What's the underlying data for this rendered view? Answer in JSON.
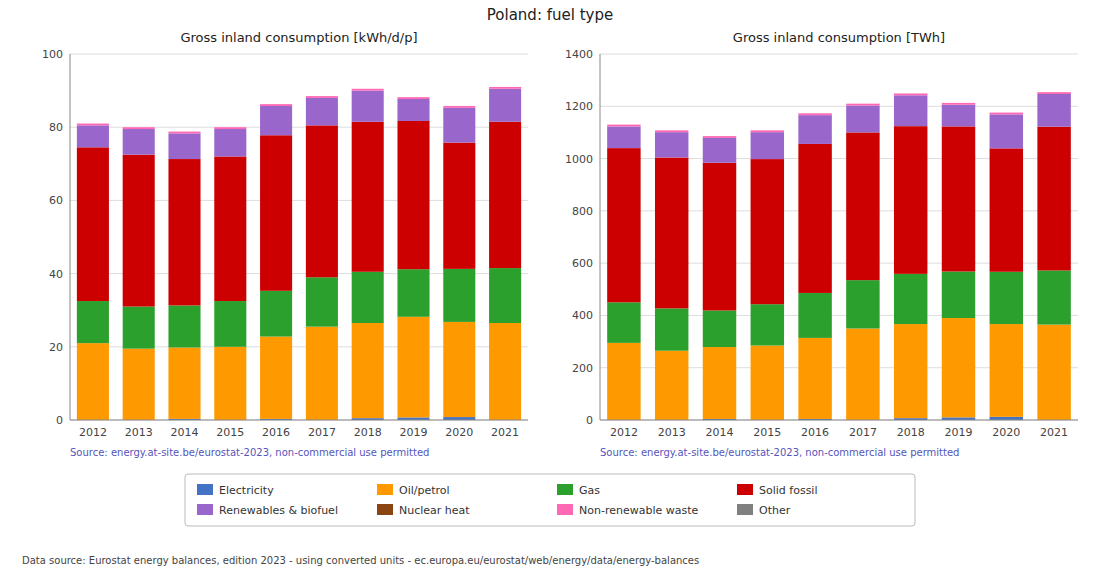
{
  "title": "Poland: fuel type",
  "annotations": [
    "Data source: Eurostat energy balances, edition 2023 - using converted units - ec.europa.eu/eurostat/web/energy/data/energy-balances"
  ],
  "chart_data": [
    {
      "type": "bar",
      "stacked": true,
      "grid": true,
      "legend": "bottom",
      "title": "Gross inland consumption [kWh/d/p]",
      "annotations": [
        "Source: energy.at-site.be/eurostat-2023, non-commercial use permitted"
      ],
      "categories": [
        "2012",
        "2013",
        "2014",
        "2015",
        "2016",
        "2017",
        "2018",
        "2019",
        "2020",
        "2021"
      ],
      "ylim": [
        0,
        100
      ],
      "yticks": [
        0,
        20,
        40,
        60,
        80,
        100
      ],
      "series": [
        {
          "name": "Electricity",
          "color": "#4472c4",
          "values": [
            0.0,
            0.0,
            0.3,
            0.0,
            0.3,
            0.0,
            0.5,
            0.7,
            0.8,
            0.0
          ]
        },
        {
          "name": "Oil/petrol",
          "color": "#ff9900",
          "values": [
            21.0,
            19.5,
            19.5,
            20.0,
            22.5,
            25.5,
            26.0,
            27.5,
            26.0,
            26.5
          ]
        },
        {
          "name": "Gas",
          "color": "#2ca02c",
          "values": [
            11.5,
            11.5,
            11.5,
            12.5,
            12.5,
            13.5,
            14.0,
            13.0,
            14.5,
            15.0
          ]
        },
        {
          "name": "Solid fossil",
          "color": "#cc0000",
          "values": [
            42.0,
            41.5,
            40.0,
            39.5,
            42.5,
            41.5,
            41.0,
            40.5,
            34.5,
            40.0
          ]
        },
        {
          "name": "Renewables & biofuel",
          "color": "#9966cc",
          "values": [
            6.0,
            7.0,
            7.0,
            7.5,
            8.0,
            7.5,
            8.5,
            6.0,
            9.5,
            9.0
          ]
        },
        {
          "name": "Nuclear heat",
          "color": "#8b4513",
          "values": [
            0.0,
            0.0,
            0.0,
            0.0,
            0.0,
            0.0,
            0.0,
            0.0,
            0.0,
            0.0
          ]
        },
        {
          "name": "Non-renewable waste",
          "color": "#ff69b4",
          "values": [
            0.5,
            0.5,
            0.5,
            0.5,
            0.5,
            0.5,
            0.5,
            0.5,
            0.5,
            0.5
          ]
        },
        {
          "name": "Other",
          "color": "#808080",
          "values": [
            0.0,
            0.0,
            0.0,
            0.0,
            0.0,
            0.0,
            0.0,
            0.0,
            0.0,
            0.0
          ]
        }
      ]
    },
    {
      "type": "bar",
      "stacked": true,
      "grid": true,
      "legend": "bottom",
      "title": "Gross inland consumption [TWh]",
      "annotations": [
        "Source: energy.at-site.be/eurostat-2023, non-commercial use permitted"
      ],
      "categories": [
        "2012",
        "2013",
        "2014",
        "2015",
        "2016",
        "2017",
        "2018",
        "2019",
        "2020",
        "2021"
      ],
      "ylim": [
        0,
        1400
      ],
      "yticks": [
        0,
        200,
        400,
        600,
        800,
        1000,
        1200,
        1400
      ],
      "series": [
        {
          "name": "Electricity",
          "color": "#4472c4",
          "values": [
            0,
            0,
            4,
            0,
            4,
            0,
            7,
            10,
            12,
            0
          ]
        },
        {
          "name": "Oil/petrol",
          "color": "#ff9900",
          "values": [
            295,
            265,
            275,
            285,
            310,
            350,
            360,
            380,
            355,
            365
          ]
        },
        {
          "name": "Gas",
          "color": "#2ca02c",
          "values": [
            155,
            162,
            140,
            158,
            172,
            185,
            192,
            178,
            200,
            207
          ]
        },
        {
          "name": "Solid fossil",
          "color": "#cc0000",
          "values": [
            590,
            577,
            565,
            555,
            570,
            565,
            565,
            555,
            472,
            550
          ]
        },
        {
          "name": "Renewables & biofuel",
          "color": "#9966cc",
          "values": [
            83,
            97,
            95,
            103,
            110,
            103,
            118,
            83,
            130,
            125
          ]
        },
        {
          "name": "Nuclear heat",
          "color": "#8b4513",
          "values": [
            0,
            0,
            0,
            0,
            0,
            0,
            0,
            0,
            0,
            0
          ]
        },
        {
          "name": "Non-renewable waste",
          "color": "#ff69b4",
          "values": [
            7,
            7,
            7,
            7,
            7,
            7,
            7,
            7,
            7,
            7
          ]
        },
        {
          "name": "Other",
          "color": "#808080",
          "values": [
            0,
            0,
            0,
            0,
            0,
            0,
            0,
            0,
            0,
            0
          ]
        }
      ]
    }
  ]
}
